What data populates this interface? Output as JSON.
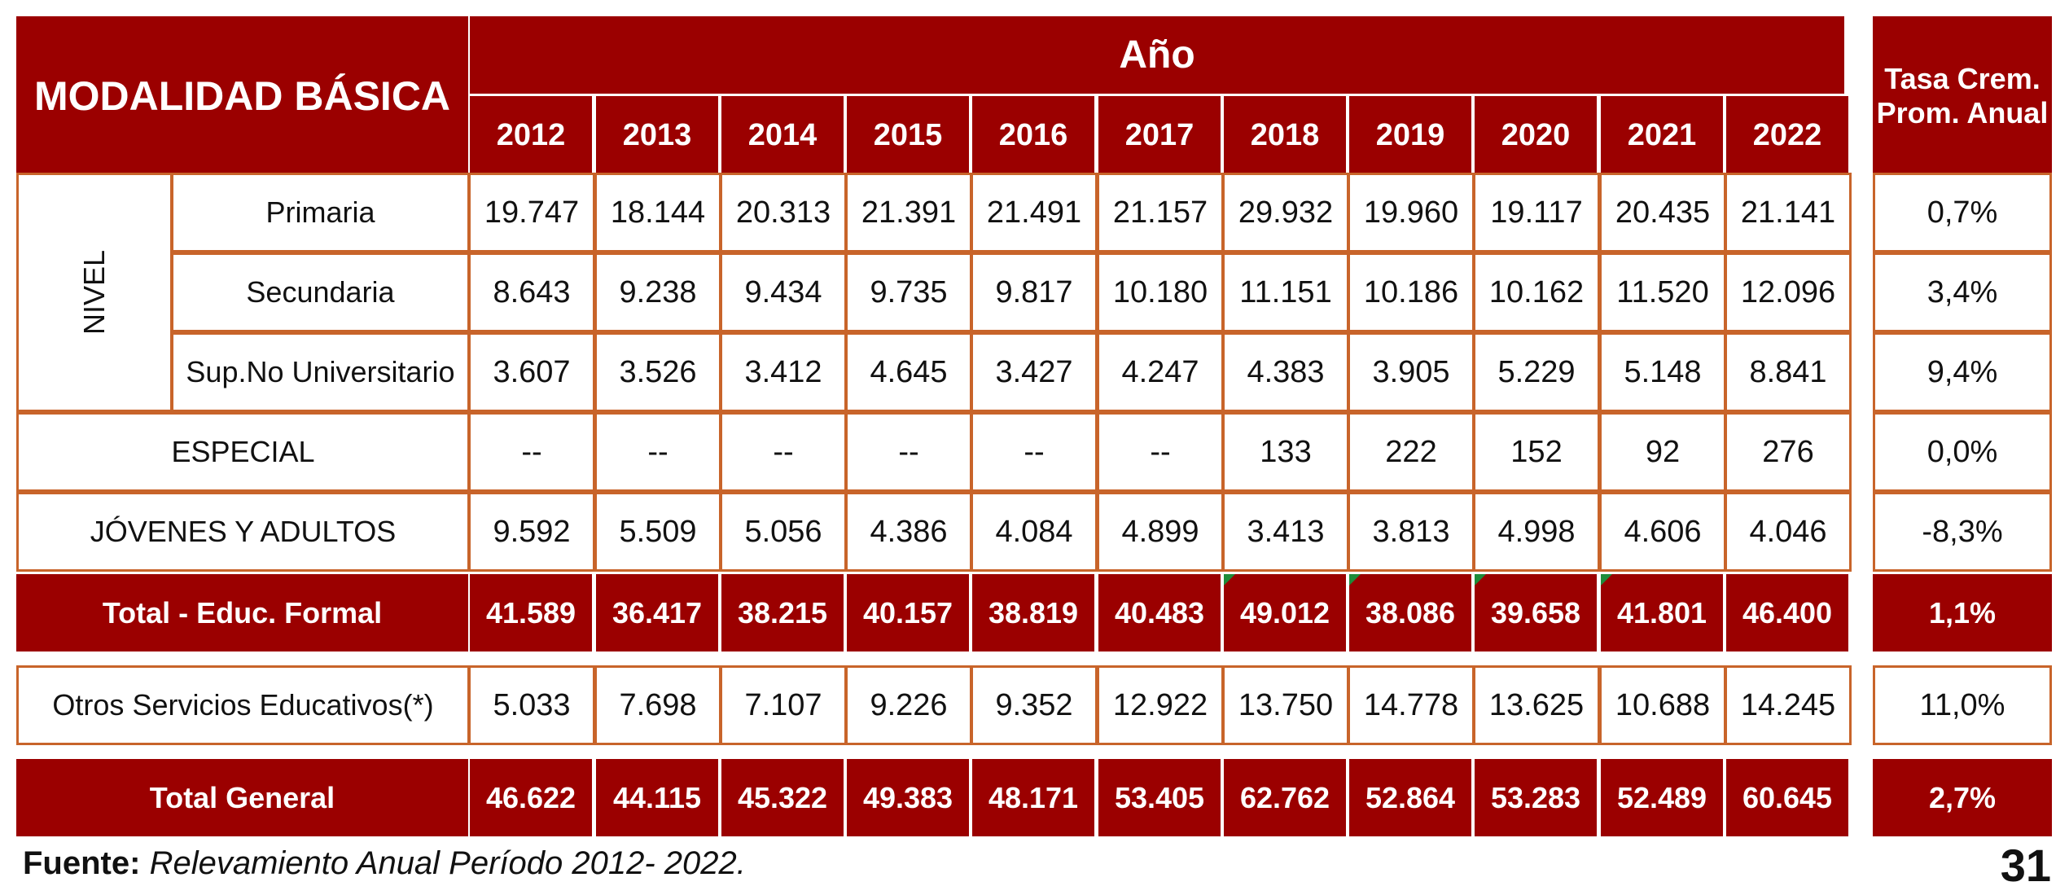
{
  "header": {
    "modalidad_label": "MODALIDAD BÁSICA",
    "year_group_label": "Año",
    "years": [
      "2012",
      "2013",
      "2014",
      "2015",
      "2016",
      "2017",
      "2018",
      "2019",
      "2020",
      "2021",
      "2022"
    ],
    "tasa_label_line1": "Tasa Crem.",
    "tasa_label_line2": "Prom. Anual"
  },
  "nivel_label": "NIVEL",
  "rows": [
    {
      "label": "Primaria",
      "values": [
        "19.747",
        "18.144",
        "20.313",
        "21.391",
        "21.491",
        "21.157",
        "29.932",
        "19.960",
        "19.117",
        "20.435",
        "21.141"
      ],
      "tasa": "0,7%"
    },
    {
      "label": "Secundaria",
      "values": [
        "8.643",
        "9.238",
        "9.434",
        "9.735",
        "9.817",
        "10.180",
        "11.151",
        "10.186",
        "10.162",
        "11.520",
        "12.096"
      ],
      "tasa": "3,4%"
    },
    {
      "label": "Sup.No Universitario",
      "values": [
        "3.607",
        "3.526",
        "3.412",
        "4.645",
        "3.427",
        "4.247",
        "4.383",
        "3.905",
        "5.229",
        "5.148",
        "8.841"
      ],
      "tasa": "9,4%"
    },
    {
      "label": "ESPECIAL",
      "values": [
        "--",
        "--",
        "--",
        "--",
        "--",
        "--",
        "133",
        "222",
        "152",
        "92",
        "276"
      ],
      "tasa": "0,0%"
    },
    {
      "label": "JÓVENES Y ADULTOS",
      "values": [
        "9.592",
        "5.509",
        "5.056",
        "4.386",
        "4.084",
        "4.899",
        "3.413",
        "3.813",
        "4.998",
        "4.606",
        "4.046"
      ],
      "tasa": "-8,3%"
    }
  ],
  "total_formal": {
    "label": "Total - Educ. Formal",
    "values": [
      "41.589",
      "36.417",
      "38.215",
      "40.157",
      "38.819",
      "40.483",
      "49.012",
      "38.086",
      "39.658",
      "41.801",
      "46.400"
    ],
    "tasa": "1,1%"
  },
  "otros": {
    "label": "Otros Servicios Educativos(*)",
    "values": [
      "5.033",
      "7.698",
      "7.107",
      "9.226",
      "9.352",
      "12.922",
      "13.750",
      "14.778",
      "13.625",
      "10.688",
      "14.245"
    ],
    "tasa": "11,0%"
  },
  "total_general": {
    "label": "Total General",
    "values": [
      "46.622",
      "44.115",
      "45.322",
      "49.383",
      "48.171",
      "53.405",
      "62.762",
      "52.864",
      "53.283",
      "52.489",
      "60.645"
    ],
    "tasa": "2,7%"
  },
  "footer": {
    "fuente_label": "Fuente:",
    "fuente_text": "Relevamiento Anual Período 2012- 2022.",
    "page_number": "31"
  },
  "colors": {
    "header_red": "#9b0000",
    "border_orange": "#c8642a",
    "marker_green": "#1e8c3a"
  }
}
